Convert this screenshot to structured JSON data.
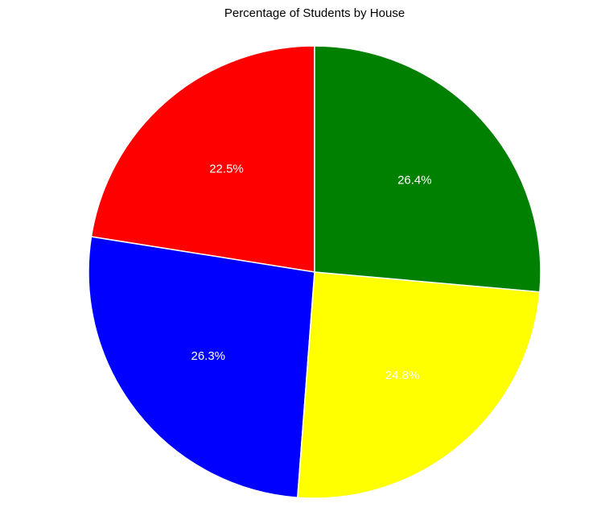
{
  "chart_data": {
    "type": "pie",
    "title": "Percentage of Students by House",
    "values": [
      22.5,
      26.3,
      24.8,
      26.4
    ],
    "labels": [
      "22.5%",
      "26.3%",
      "24.8%",
      "26.4%"
    ],
    "colors": [
      "#ff0000",
      "#0000ff",
      "#ffff00",
      "#008000"
    ],
    "start_angle_deg": 90,
    "direction": "counterclockwise",
    "slice_border_color": "#ffffff",
    "label_color": "#ffffff"
  }
}
